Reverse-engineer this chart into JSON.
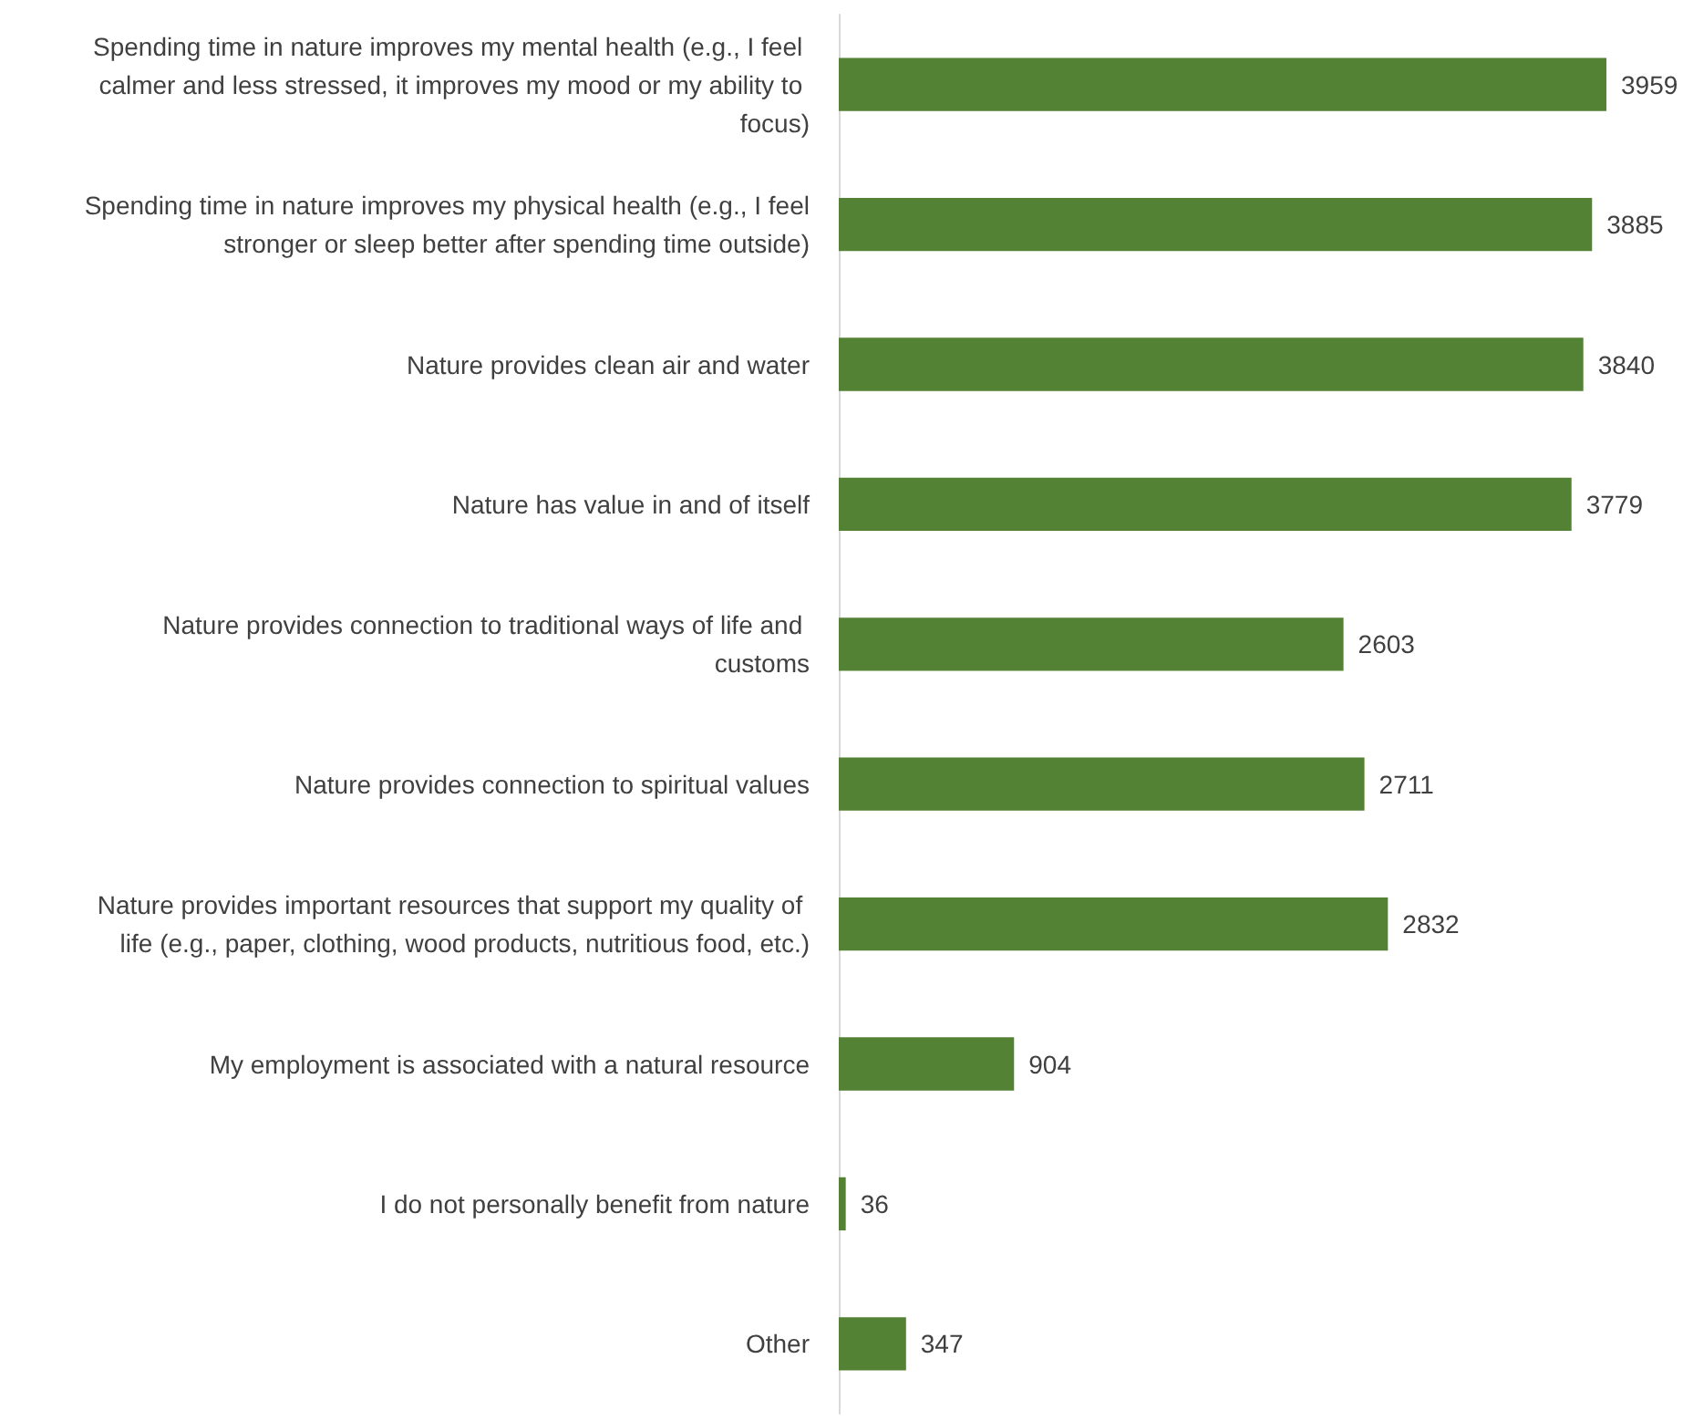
{
  "chart_data": {
    "type": "bar",
    "orientation": "horizontal",
    "categories": [
      "Spending time in nature improves my mental health (e.g., I feel calmer and less stressed, it improves my mood or my ability to focus)",
      "Spending time in nature improves my physical health (e.g., I feel stronger or sleep better after spending time outside)",
      "Nature provides clean air and water",
      "Nature has value in and of itself",
      "Nature provides connection to traditional ways of life and customs",
      "Nature provides connection to spiritual values",
      "Nature provides important resources that support my quality of life (e.g., paper, clothing, wood products, nutritious food, etc.)",
      "My employment is associated with a natural resource",
      "I do not personally benefit from nature",
      "Other"
    ],
    "values": [
      3959,
      3885,
      3840,
      3779,
      2603,
      2711,
      2832,
      904,
      36,
      347
    ],
    "color": "#548235",
    "data_labels": true
  }
}
